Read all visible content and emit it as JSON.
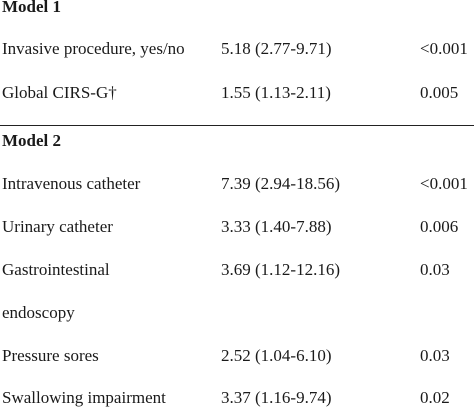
{
  "model1": {
    "heading": "Model 1",
    "rows": [
      {
        "variable": "Invasive procedure, yes/no",
        "or_ci": "5.18 (2.77-9.71)",
        "p": "<0.001"
      },
      {
        "variable": "Global CIRS-G†",
        "or_ci": "1.55 (1.13-2.11)",
        "p": "0.005"
      }
    ]
  },
  "model2": {
    "heading": "Model 2",
    "rows": [
      {
        "variable": "Intravenous catheter",
        "or_ci": "7.39 (2.94-18.56)",
        "p": "<0.001"
      },
      {
        "variable": "Urinary catheter",
        "or_ci": "3.33 (1.40-7.88)",
        "p": "0.006"
      },
      {
        "variable": "Gastrointestinal",
        "or_ci": "3.69 (1.12-12.16)",
        "p": "0.03"
      },
      {
        "variable": "endoscopy",
        "or_ci": "",
        "p": ""
      },
      {
        "variable": "Pressure sores",
        "or_ci": "2.52 (1.04-6.10)",
        "p": "0.03"
      },
      {
        "variable": "Swallowing impairment",
        "or_ci": "3.37 (1.16-9.74)",
        "p": "0.02"
      }
    ]
  }
}
